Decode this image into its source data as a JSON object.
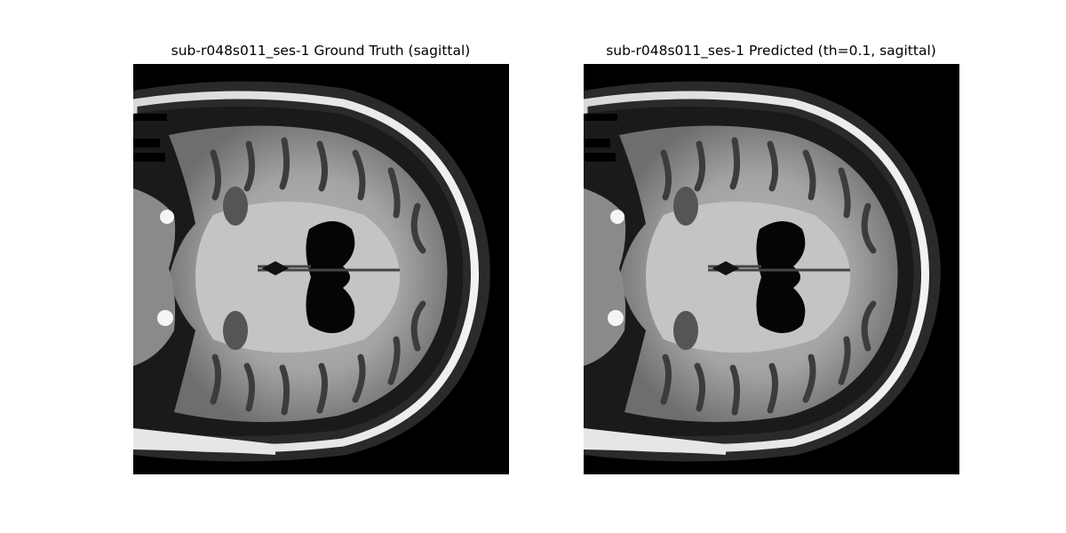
{
  "figure": {
    "panels": [
      {
        "title": "sub-r048s011_ses-1 Ground Truth (sagittal)",
        "image": "brain-mri-slice"
      },
      {
        "title": "sub-r048s011_ses-1 Predicted (th=0.1, sagittal)",
        "image": "brain-mri-slice"
      }
    ]
  }
}
